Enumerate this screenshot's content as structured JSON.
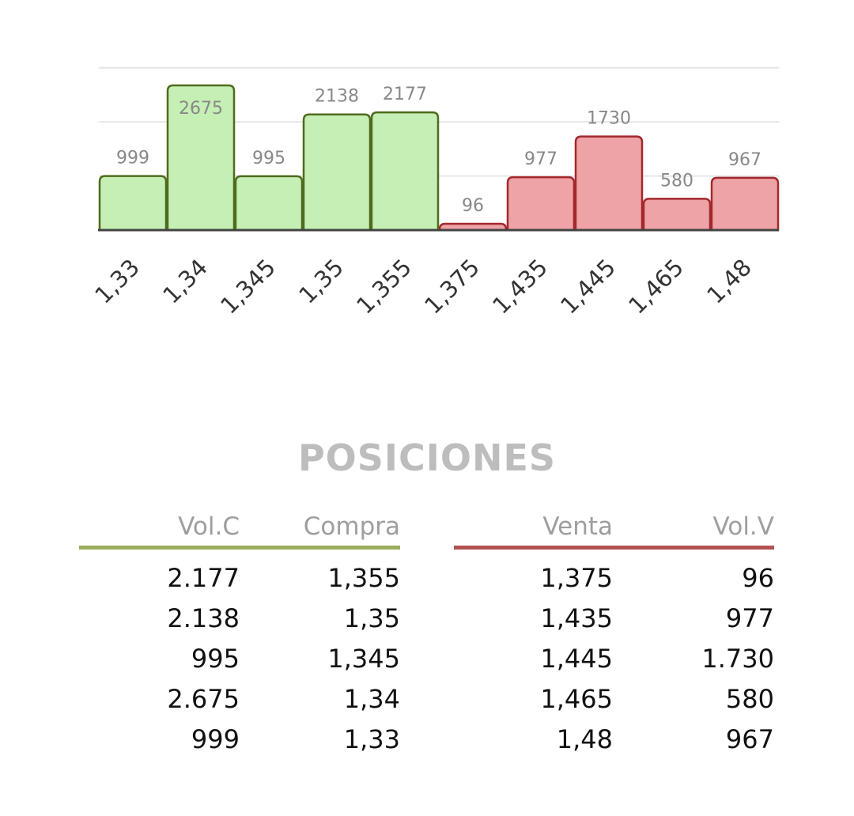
{
  "chart_data": {
    "type": "bar",
    "categories": [
      "1,33",
      "1,34",
      "1,345",
      "1,35",
      "1,355",
      "1,375",
      "1,435",
      "1,445",
      "1,465",
      "1,48"
    ],
    "values": [
      999,
      2675,
      995,
      2138,
      2177,
      96,
      977,
      1730,
      580,
      967
    ],
    "value_labels": [
      "999",
      "2675",
      "995",
      "2138",
      "2177",
      "96",
      "977",
      "1730",
      "580",
      "967"
    ],
    "sides": [
      "buy",
      "buy",
      "buy",
      "buy",
      "buy",
      "sell",
      "sell",
      "sell",
      "sell",
      "sell"
    ],
    "ylim": [
      0,
      3000
    ],
    "grid": true,
    "colors": {
      "buy_fill": "#c5efb4",
      "buy_stroke": "#4f6b1e",
      "sell_fill": "#eea3a6",
      "sell_stroke": "#a3282e",
      "grid": "#e6e6e6",
      "axis": "#444444"
    }
  },
  "positions": {
    "title": "POSICIONES",
    "buy": {
      "headers": {
        "volume": "Vol.C",
        "price": "Compra"
      },
      "accent": "#9aad5a",
      "rows": [
        {
          "volume": "2.177",
          "price": "1,355"
        },
        {
          "volume": "2.138",
          "price": "1,35"
        },
        {
          "volume": "995",
          "price": "1,345"
        },
        {
          "volume": "2.675",
          "price": "1,34"
        },
        {
          "volume": "999",
          "price": "1,33"
        }
      ]
    },
    "sell": {
      "headers": {
        "price": "Venta",
        "volume": "Vol.V"
      },
      "accent": "#b35050",
      "rows": [
        {
          "price": "1,375",
          "volume": "96"
        },
        {
          "price": "1,435",
          "volume": "977"
        },
        {
          "price": "1,445",
          "volume": "1.730"
        },
        {
          "price": "1,465",
          "volume": "580"
        },
        {
          "price": "1,48",
          "volume": "967"
        }
      ]
    }
  }
}
